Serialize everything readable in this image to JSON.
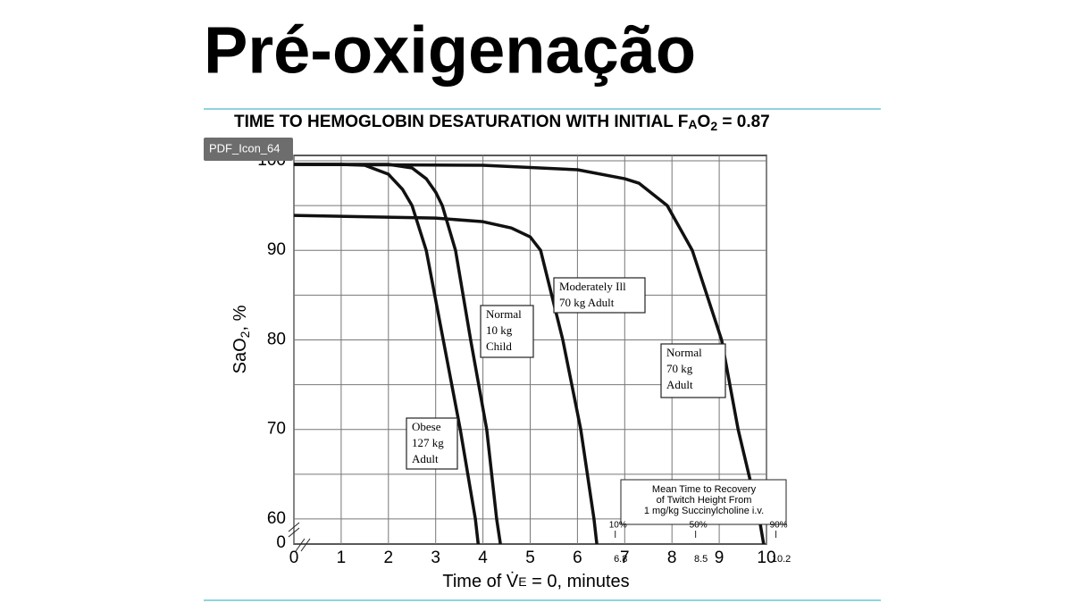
{
  "slide": {
    "title": "Pré-oxigenação",
    "overlay_label": "PDF_Icon_64"
  },
  "chart_data": {
    "type": "line",
    "title_parts": [
      "TIME TO HEMOGLOBIN DESATURATION WITH INITIAL F",
      "A",
      "O",
      "2",
      " = 0.87"
    ],
    "ylabel_parts": [
      "SaO",
      "2",
      ", %"
    ],
    "xlabel_parts": [
      "Time of ",
      "V̇",
      "E",
      " = 0, minutes"
    ],
    "xlim": [
      0,
      10
    ],
    "ylim": [
      57.2,
      100
    ],
    "xticks": [
      0,
      1,
      2,
      3,
      4,
      5,
      6,
      7,
      8,
      9,
      10
    ],
    "yticks": [
      60,
      70,
      80,
      90,
      100
    ],
    "y_minor_grid": [
      65,
      75,
      85,
      95
    ],
    "y_break_label": "0",
    "grid": true,
    "series": [
      {
        "label_lines": [
          "Obese",
          "127 kg",
          "Adult"
        ],
        "color": "#111111",
        "x": [
          0,
          1,
          1.5,
          2,
          2.3,
          2.5,
          2.8,
          3.16,
          3.52,
          3.84,
          3.9
        ],
        "values": [
          99.6,
          99.6,
          99.5,
          98.5,
          96.8,
          95,
          90,
          80,
          70,
          60,
          57.2
        ]
      },
      {
        "label_lines": [
          "Normal",
          "10 kg",
          "Child"
        ],
        "color": "#111111",
        "x": [
          0,
          2,
          2.5,
          2.8,
          3.0,
          3.14,
          3.42,
          3.74,
          4.08,
          4.29,
          4.37
        ],
        "values": [
          99.6,
          99.6,
          99.2,
          98,
          96.5,
          95,
          90,
          80,
          70,
          60,
          57.2
        ]
      },
      {
        "label_lines": [
          "Moderately Ill",
          "70 kg Adult"
        ],
        "color": "#111111",
        "x": [
          0,
          3,
          4,
          4.6,
          5.0,
          5.22,
          5.69,
          6.07,
          6.35,
          6.41
        ],
        "values": [
          93.9,
          93.6,
          93.2,
          92.5,
          91.5,
          90,
          80,
          70,
          60,
          57.2
        ]
      },
      {
        "label_lines": [
          "Normal",
          "70 kg",
          "Adult"
        ],
        "color": "#111111",
        "x": [
          0,
          4,
          6,
          7,
          7.3,
          7.9,
          8.43,
          9.05,
          9.4,
          9.85,
          9.94
        ],
        "values": [
          99.6,
          99.5,
          99,
          98,
          97.5,
          95,
          90,
          80,
          70,
          60,
          57.2
        ]
      }
    ],
    "recovery": {
      "text_lines": [
        "Mean Time to Recovery",
        "of Twitch Height From",
        "1 mg/kg Succinylcholine i.v."
      ],
      "markers": [
        {
          "value": 6.8,
          "percent": "10%"
        },
        {
          "value": 8.5,
          "percent": "50%"
        },
        {
          "value": 10.2,
          "percent": "90%"
        }
      ]
    }
  }
}
